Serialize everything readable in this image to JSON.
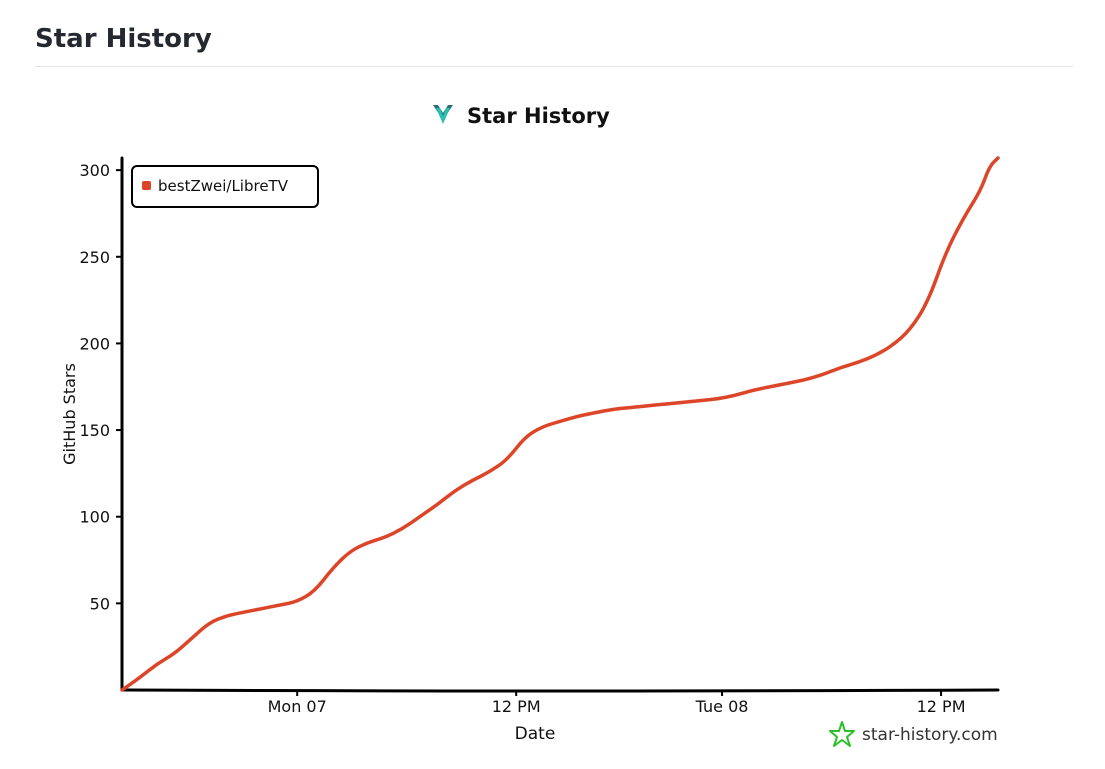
{
  "page": {
    "heading": "Star History"
  },
  "chart_data": {
    "type": "line",
    "title": "Star History",
    "xlabel": "Date",
    "ylabel": "GitHub Stars",
    "ylim": [
      0,
      307
    ],
    "yticks": [
      50,
      100,
      150,
      200,
      250,
      300
    ],
    "xlim": [
      0,
      100
    ],
    "xticks": [
      {
        "label": "Mon 07",
        "x": 20
      },
      {
        "label": "12 PM",
        "x": 45
      },
      {
        "label": "Tue 08",
        "x": 68.5
      },
      {
        "label": "12 PM",
        "x": 93.5
      }
    ],
    "legend": {
      "position": "top-left"
    },
    "grid": false,
    "series": [
      {
        "name": "bestZwei/LibreTV",
        "color": "#dd4528",
        "points": [
          [
            0,
            0
          ],
          [
            2,
            7
          ],
          [
            4,
            15
          ],
          [
            6,
            21
          ],
          [
            8,
            30
          ],
          [
            10,
            39
          ],
          [
            12,
            43
          ],
          [
            14,
            45
          ],
          [
            16,
            47
          ],
          [
            18,
            49
          ],
          [
            20,
            51
          ],
          [
            22,
            57
          ],
          [
            24,
            70
          ],
          [
            26,
            80
          ],
          [
            28,
            85
          ],
          [
            30,
            88
          ],
          [
            32,
            93
          ],
          [
            34,
            100
          ],
          [
            36,
            107
          ],
          [
            38,
            115
          ],
          [
            40,
            121
          ],
          [
            42,
            126
          ],
          [
            44,
            133
          ],
          [
            46,
            146
          ],
          [
            48,
            152
          ],
          [
            50,
            155
          ],
          [
            52,
            158
          ],
          [
            54,
            160
          ],
          [
            56,
            162
          ],
          [
            58,
            163
          ],
          [
            60,
            164
          ],
          [
            62,
            165
          ],
          [
            64,
            166
          ],
          [
            66,
            167
          ],
          [
            68,
            168
          ],
          [
            70,
            170
          ],
          [
            72,
            173
          ],
          [
            74,
            175
          ],
          [
            76,
            177
          ],
          [
            78,
            179
          ],
          [
            80,
            182
          ],
          [
            82,
            186
          ],
          [
            84,
            189
          ],
          [
            86,
            193
          ],
          [
            88,
            199
          ],
          [
            90,
            208
          ],
          [
            92,
            224
          ],
          [
            94,
            252
          ],
          [
            96,
            272
          ],
          [
            98,
            288
          ],
          [
            99,
            302
          ],
          [
            100,
            307
          ]
        ]
      }
    ]
  },
  "watermark": {
    "text": "star-history.com"
  }
}
